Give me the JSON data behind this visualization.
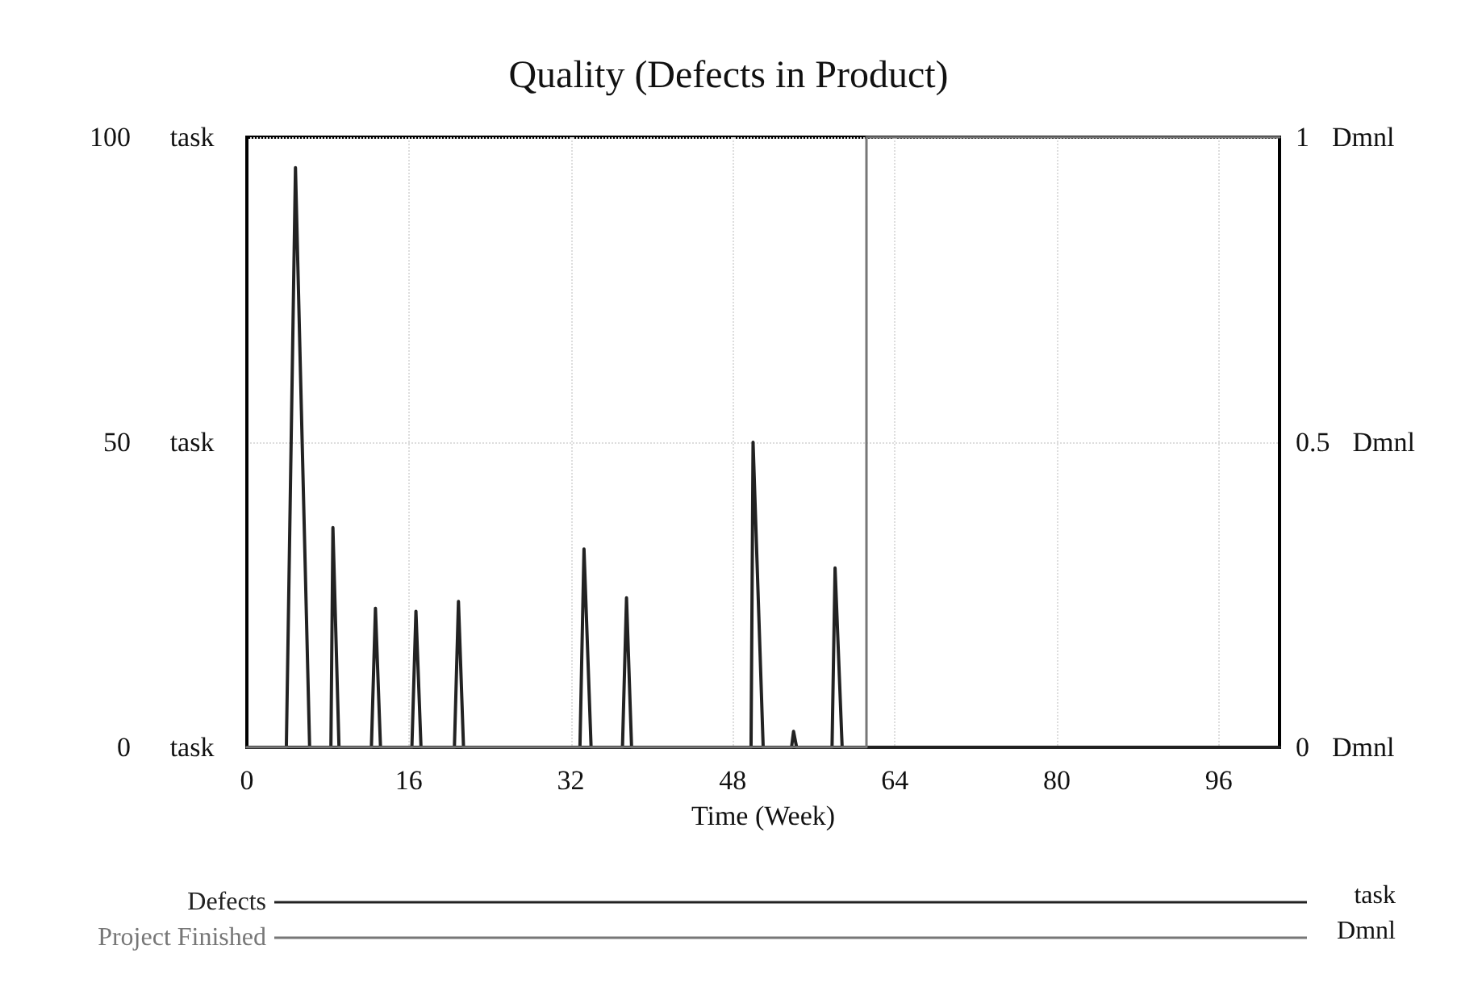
{
  "chart_data": {
    "type": "line",
    "title": "Quality (Defects in Product)",
    "xlabel": "Time (Week)",
    "ylabel": "task",
    "y2label": "Dmnl",
    "xlim": [
      0,
      102
    ],
    "xticks": [
      0,
      16,
      32,
      48,
      64,
      80,
      96
    ],
    "ylim": [
      0,
      100
    ],
    "yticks": [
      0,
      50,
      100
    ],
    "y2lim": [
      0,
      1
    ],
    "y2ticks": [
      0,
      0.5,
      1
    ],
    "grid": true,
    "legend": "bottom",
    "marker": "none",
    "line_style": "solid",
    "series": [
      {
        "name": "Defects",
        "color": "#222222",
        "x": [
          0,
          3.9,
          4.8,
          6.2,
          8.3,
          8.5,
          9.1,
          12.3,
          12.7,
          13.2,
          16.3,
          16.7,
          17.2,
          20.5,
          20.9,
          21.4,
          32.9,
          33.3,
          34,
          37.1,
          37.5,
          38,
          49.8,
          50,
          51,
          53.8,
          54,
          54.3,
          57.8,
          58.1,
          58.8,
          102
        ],
        "values": [
          0,
          0,
          95,
          0,
          0,
          36,
          0,
          0,
          22.8,
          0,
          0,
          22.3,
          0,
          0,
          23.9,
          0,
          0,
          32.5,
          0,
          0,
          24.5,
          0,
          0,
          50,
          0,
          0,
          2.6,
          0,
          0,
          29.4,
          0,
          0
        ]
      },
      {
        "name": "Project Finished",
        "color": "#777777",
        "type": "step",
        "axis": "y2",
        "x": [
          0,
          61.2,
          102
        ],
        "values": [
          0,
          1,
          1
        ]
      }
    ]
  }
}
